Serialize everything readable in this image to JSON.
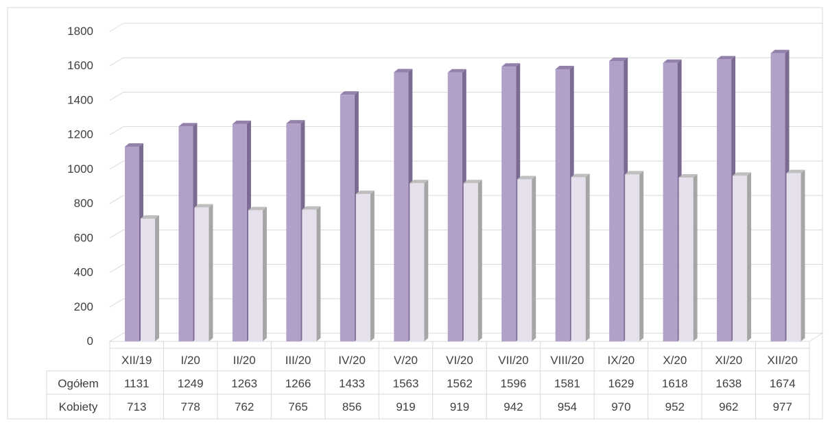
{
  "chart_data": {
    "type": "bar",
    "categories": [
      "XII/19",
      "I/20",
      "II/20",
      "III/20",
      "IV/20",
      "V/20",
      "VI/20",
      "VII/20",
      "VIII/20",
      "IX/20",
      "X/20",
      "XI/20",
      "XII/20"
    ],
    "series": [
      {
        "name": "Ogółem",
        "values": [
          1131,
          1249,
          1263,
          1266,
          1433,
          1563,
          1562,
          1596,
          1581,
          1629,
          1618,
          1638,
          1674
        ],
        "color": "#b1a0c7",
        "side_color": "#7b6a91",
        "top_color": "#9481ab"
      },
      {
        "name": "Kobiety",
        "values": [
          713,
          778,
          762,
          765,
          856,
          919,
          919,
          942,
          954,
          970,
          952,
          962,
          977
        ],
        "color": "#e6e0ec",
        "side_color": "#a6a6a6",
        "top_color": "#bfbfbf"
      }
    ],
    "ylim": [
      0,
      1800
    ],
    "yticks": [
      0,
      200,
      400,
      600,
      800,
      1000,
      1200,
      1400,
      1600,
      1800
    ],
    "grid": true,
    "legend": "data table below chart",
    "title": "",
    "xlabel": "",
    "ylabel": ""
  }
}
